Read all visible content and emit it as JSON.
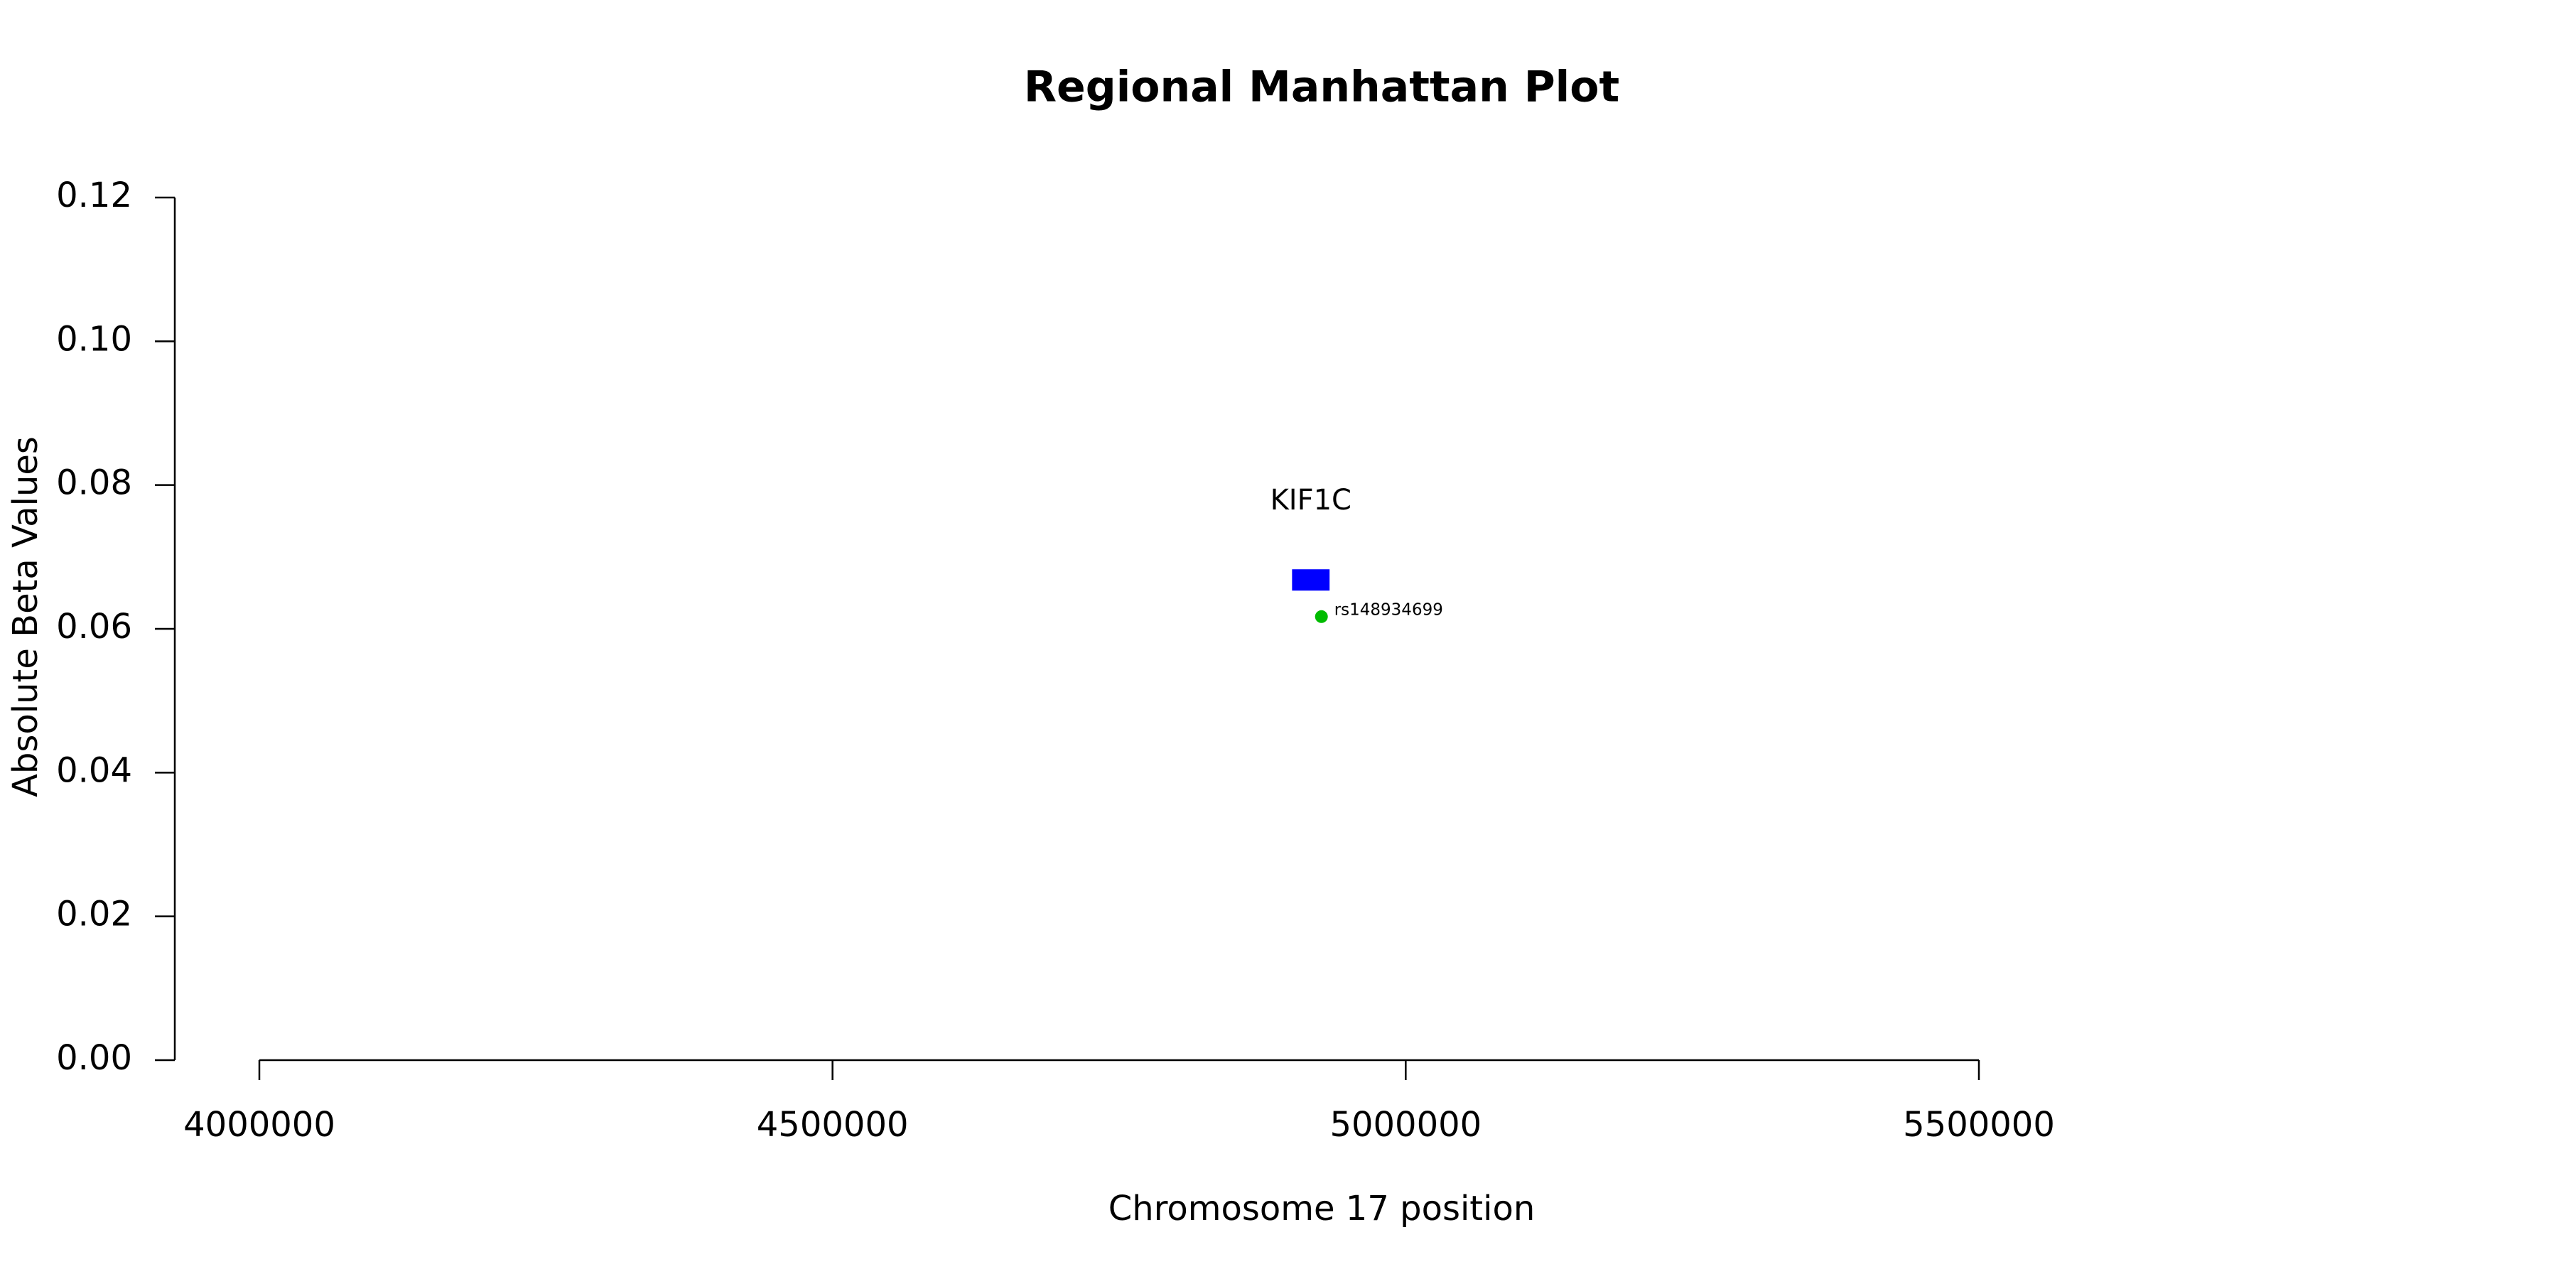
{
  "chart_data": {
    "type": "scatter",
    "title": "Regional Manhattan Plot",
    "x_label": "Chromosome 17 position",
    "y_label": "Absolute Beta Values",
    "x": [
      4926470
    ],
    "values": [
      0.0617
    ],
    "point_labels": [
      "rs148934699"
    ],
    "color": "#00bb00",
    "genes": [
      {
        "label": "KIF1C",
        "start": 4900854,
        "end": 4933586,
        "y": 0.0668,
        "color": "#0000ff"
      }
    ],
    "xlim": [
      4000000,
      5500000
    ],
    "xticks": [
      4000000,
      4500000,
      5000000,
      5500000
    ],
    "ylim": [
      0,
      0.12
    ],
    "yticks": [
      {
        "value": 0,
        "label": "0.00"
      },
      {
        "value": 0.02,
        "label": "0.02"
      },
      {
        "value": 0.04,
        "label": "0.04"
      },
      {
        "value": 0.06,
        "label": "0.06"
      },
      {
        "value": 0.08,
        "label": "0.08"
      },
      {
        "value": 0.1,
        "label": "0.10"
      },
      {
        "value": 0.12,
        "label": "0.12"
      }
    ],
    "grid": false
  }
}
